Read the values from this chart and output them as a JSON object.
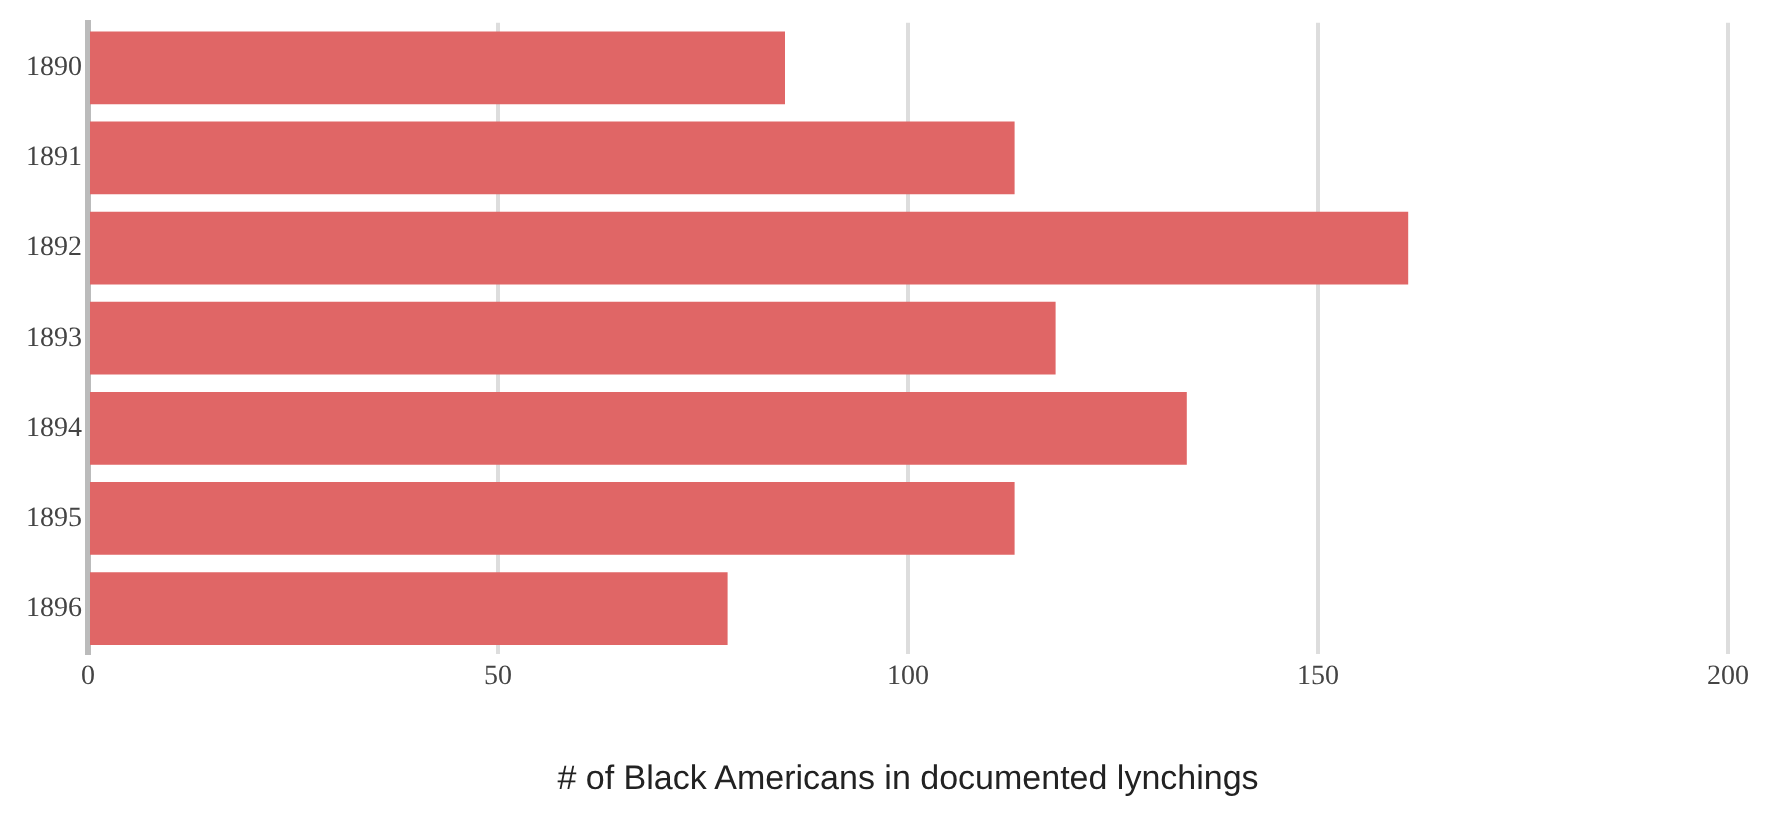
{
  "chart_data": {
    "type": "bar",
    "orientation": "horizontal",
    "xlabel": "# of Black Americans in documented lynchings",
    "categories": [
      "1890",
      "1891",
      "1892",
      "1893",
      "1894",
      "1895",
      "1896"
    ],
    "values": [
      85,
      113,
      161,
      118,
      134,
      113,
      78
    ],
    "color": "#e06666",
    "xlim": [
      0,
      200
    ],
    "xticks": [
      0,
      50,
      100,
      150,
      200
    ],
    "grid": "x"
  }
}
